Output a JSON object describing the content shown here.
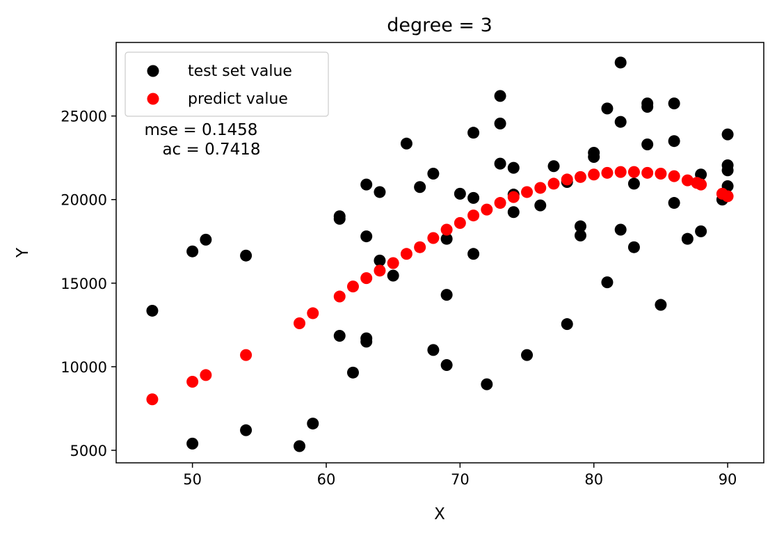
{
  "chart_data": {
    "type": "scatter",
    "title": "degree = 3",
    "xlabel": "X",
    "ylabel": "Y",
    "xlim": [
      44.3,
      92.7
    ],
    "ylim": [
      4250,
      29400
    ],
    "xticks": [
      50,
      60,
      70,
      80,
      90
    ],
    "yticks": [
      5000,
      10000,
      15000,
      20000,
      25000
    ],
    "grid": false,
    "legend_position": "top-left",
    "annotations": [
      "mse = 0.1458",
      "ac = 0.7418"
    ],
    "series": [
      {
        "name": "test set value",
        "color": "#000000",
        "points": [
          [
            47,
            13350
          ],
          [
            50,
            5400
          ],
          [
            50,
            16900
          ],
          [
            51,
            17600
          ],
          [
            54,
            16650
          ],
          [
            54,
            6200
          ],
          [
            58,
            5250
          ],
          [
            59,
            6600
          ],
          [
            61,
            19000
          ],
          [
            61,
            18850
          ],
          [
            61,
            11850
          ],
          [
            62,
            9650
          ],
          [
            63,
            20900
          ],
          [
            63,
            17800
          ],
          [
            63,
            11700
          ],
          [
            63,
            11500
          ],
          [
            64,
            16350
          ],
          [
            64,
            20450
          ],
          [
            65,
            15450
          ],
          [
            66,
            23350
          ],
          [
            67,
            20750
          ],
          [
            68,
            21550
          ],
          [
            68,
            11000
          ],
          [
            69,
            17650
          ],
          [
            69,
            14300
          ],
          [
            69,
            10100
          ],
          [
            70,
            20350
          ],
          [
            71,
            24000
          ],
          [
            71,
            20100
          ],
          [
            71,
            16750
          ],
          [
            72,
            8950
          ],
          [
            73,
            26200
          ],
          [
            73,
            24550
          ],
          [
            73,
            22150
          ],
          [
            74,
            21900
          ],
          [
            74,
            20300
          ],
          [
            74,
            19250
          ],
          [
            75,
            10700
          ],
          [
            76,
            19650
          ],
          [
            77,
            22000
          ],
          [
            78,
            21050
          ],
          [
            78,
            12550
          ],
          [
            79,
            18400
          ],
          [
            79,
            17850
          ],
          [
            80,
            22800
          ],
          [
            80,
            22550
          ],
          [
            81,
            25450
          ],
          [
            81,
            15050
          ],
          [
            82,
            28200
          ],
          [
            82,
            24650
          ],
          [
            82,
            18200
          ],
          [
            83,
            20950
          ],
          [
            83,
            17150
          ],
          [
            84,
            25750
          ],
          [
            84,
            25550
          ],
          [
            84,
            23300
          ],
          [
            85,
            13700
          ],
          [
            86,
            25750
          ],
          [
            86,
            23500
          ],
          [
            86,
            19800
          ],
          [
            87,
            17650
          ],
          [
            88,
            21500
          ],
          [
            88,
            18100
          ],
          [
            89.6,
            20000
          ],
          [
            90,
            23900
          ],
          [
            90,
            22050
          ],
          [
            90,
            21750
          ],
          [
            90,
            20800
          ]
        ]
      },
      {
        "name": "predict value",
        "color": "#ff0000",
        "points": [
          [
            47,
            8050
          ],
          [
            50,
            9100
          ],
          [
            51,
            9500
          ],
          [
            54,
            10700
          ],
          [
            58,
            12600
          ],
          [
            59,
            13200
          ],
          [
            61,
            14200
          ],
          [
            62,
            14800
          ],
          [
            63,
            15300
          ],
          [
            64,
            15750
          ],
          [
            65,
            16200
          ],
          [
            66,
            16750
          ],
          [
            67,
            17150
          ],
          [
            68,
            17700
          ],
          [
            69,
            18200
          ],
          [
            70,
            18600
          ],
          [
            71,
            19050
          ],
          [
            72,
            19400
          ],
          [
            73,
            19800
          ],
          [
            74,
            20150
          ],
          [
            75,
            20450
          ],
          [
            76,
            20700
          ],
          [
            77,
            20950
          ],
          [
            78,
            21200
          ],
          [
            79,
            21350
          ],
          [
            80,
            21500
          ],
          [
            81,
            21600
          ],
          [
            82,
            21650
          ],
          [
            83,
            21650
          ],
          [
            84,
            21600
          ],
          [
            85,
            21550
          ],
          [
            86,
            21400
          ],
          [
            87,
            21150
          ],
          [
            87.7,
            21000
          ],
          [
            88,
            20900
          ],
          [
            89.6,
            20350
          ],
          [
            90,
            20200
          ]
        ]
      }
    ]
  }
}
